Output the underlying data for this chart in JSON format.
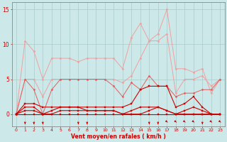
{
  "x": [
    0,
    1,
    2,
    3,
    4,
    5,
    6,
    7,
    8,
    9,
    10,
    11,
    12,
    13,
    14,
    15,
    16,
    17,
    18,
    19,
    20,
    21,
    22,
    23
  ],
  "series": [
    {
      "name": "line1_lightest",
      "color": "#f0a0a0",
      "linewidth": 0.7,
      "marker": "D",
      "markersize": 1.5,
      "y": [
        0,
        10.5,
        9.0,
        5.0,
        8.0,
        8.0,
        8.0,
        7.5,
        8.0,
        8.0,
        8.0,
        8.0,
        6.5,
        11.0,
        13.0,
        10.5,
        11.5,
        15.0,
        6.5,
        6.5,
        6.0,
        6.5,
        3.0,
        5.0
      ]
    },
    {
      "name": "line2_light",
      "color": "#f0a0a0",
      "linewidth": 0.7,
      "marker": "D",
      "markersize": 1.5,
      "y": [
        0,
        5.0,
        5.0,
        2.5,
        5.0,
        5.0,
        5.0,
        5.0,
        5.0,
        5.0,
        5.0,
        5.0,
        4.5,
        5.5,
        8.0,
        10.5,
        10.5,
        11.5,
        3.0,
        5.0,
        5.0,
        5.5,
        4.0,
        5.0
      ]
    },
    {
      "name": "line3_medium",
      "color": "#e06060",
      "linewidth": 0.7,
      "marker": "D",
      "markersize": 1.5,
      "y": [
        0,
        5.0,
        3.5,
        0.0,
        3.5,
        5.0,
        5.0,
        5.0,
        5.0,
        5.0,
        5.0,
        4.0,
        2.5,
        4.5,
        3.5,
        5.5,
        4.0,
        4.0,
        2.5,
        3.0,
        3.0,
        3.5,
        3.5,
        5.0
      ]
    },
    {
      "name": "line4_dark",
      "color": "#cc0000",
      "linewidth": 0.8,
      "marker": "s",
      "markersize": 1.5,
      "y": [
        0,
        1.5,
        1.5,
        1.0,
        1.0,
        1.0,
        1.0,
        1.0,
        1.0,
        1.0,
        1.0,
        1.0,
        1.0,
        1.5,
        3.5,
        4.0,
        4.0,
        4.0,
        1.0,
        1.5,
        2.5,
        1.0,
        0.0,
        0.0
      ]
    },
    {
      "name": "line5_dark",
      "color": "#cc0000",
      "linewidth": 0.8,
      "marker": "s",
      "markersize": 1.5,
      "y": [
        0,
        1.0,
        1.0,
        0.0,
        0.5,
        1.0,
        1.0,
        1.0,
        0.5,
        0.5,
        0.5,
        0.5,
        0.0,
        0.5,
        1.0,
        1.0,
        1.0,
        0.5,
        0.0,
        0.5,
        1.0,
        0.5,
        0.0,
        0.0
      ]
    },
    {
      "name": "line6_dark",
      "color": "#cc0000",
      "linewidth": 0.8,
      "marker": "s",
      "markersize": 1.5,
      "y": [
        0,
        0.5,
        0.5,
        0.0,
        0.0,
        0.5,
        0.5,
        0.5,
        0.5,
        0.5,
        0.5,
        0.5,
        0.0,
        0.0,
        0.0,
        0.5,
        1.0,
        0.5,
        0.0,
        0.0,
        0.0,
        0.0,
        0.0,
        0.0
      ]
    },
    {
      "name": "line7_darkest",
      "color": "#cc0000",
      "linewidth": 0.8,
      "marker": "s",
      "markersize": 1.5,
      "y": [
        0,
        0.0,
        0.0,
        0.0,
        0.0,
        0.0,
        0.0,
        0.0,
        0.0,
        0.0,
        0.0,
        0.0,
        0.0,
        0.0,
        0.0,
        0.0,
        0.0,
        0.0,
        0.0,
        0.0,
        0.0,
        0.0,
        0.0,
        0.0
      ]
    }
  ],
  "down_arrows": [
    1,
    2,
    3,
    7,
    8,
    15,
    16,
    21
  ],
  "diag_arrows": [
    17,
    18,
    19,
    20,
    22,
    23
  ],
  "xlabel": "Vent moyen/en rafales ( km/h )",
  "xlim": [
    -0.5,
    23.5
  ],
  "ylim": [
    -1.8,
    16
  ],
  "yticks": [
    0,
    5,
    10,
    15
  ],
  "xticks": [
    0,
    1,
    2,
    3,
    4,
    5,
    6,
    7,
    8,
    9,
    10,
    11,
    12,
    13,
    14,
    15,
    16,
    17,
    18,
    19,
    20,
    21,
    22,
    23
  ],
  "bg_color": "#cce8e8",
  "grid_color": "#aacccc",
  "tick_color": "#cc0000",
  "label_color": "#cc0000",
  "axis_color": "#888888"
}
